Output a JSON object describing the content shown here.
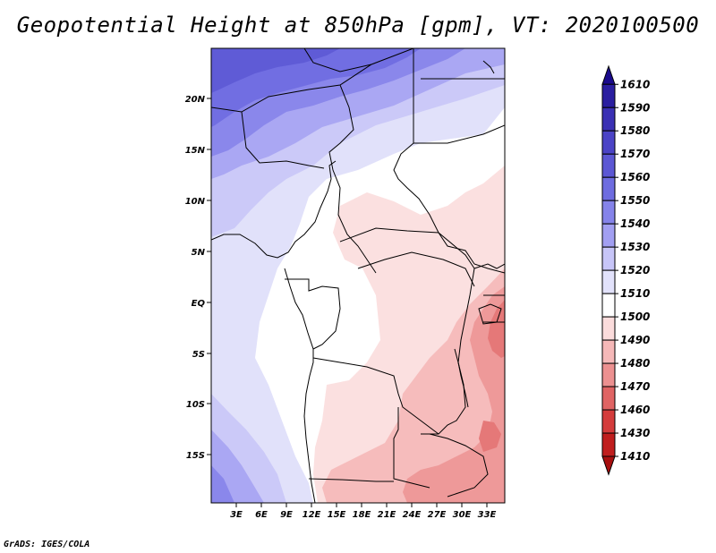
{
  "title": "Geopotential Height at 850hPa [gpm], VT: 2020100500",
  "credit": "GrADS: IGES/COLA",
  "map": {
    "lat_labels": [
      "20N",
      "15N",
      "10N",
      "5N",
      "EQ",
      "5S",
      "10S",
      "15S"
    ],
    "lon_labels": [
      "3E",
      "6E",
      "9E",
      "12E",
      "15E",
      "18E",
      "21E",
      "24E",
      "27E",
      "30E",
      "33E"
    ]
  },
  "colorbar": {
    "labels": [
      "1610",
      "1590",
      "1580",
      "1570",
      "1560",
      "1550",
      "1540",
      "1530",
      "1520",
      "1510",
      "1500",
      "1490",
      "1480",
      "1470",
      "1460",
      "1430",
      "1410"
    ],
    "colors": [
      "#1a0a8c",
      "#2a1ea0",
      "#3a30b4",
      "#4b43c6",
      "#5c57d4",
      "#6e6ce0",
      "#8583ea",
      "#a29ff2",
      "#c7c5f8",
      "#e2e2fb",
      "#ffffff",
      "#fbdcdc",
      "#f5b8b8",
      "#ec9090",
      "#e06464",
      "#d43c3c",
      "#c01e1e",
      "#a80f0f"
    ]
  }
}
